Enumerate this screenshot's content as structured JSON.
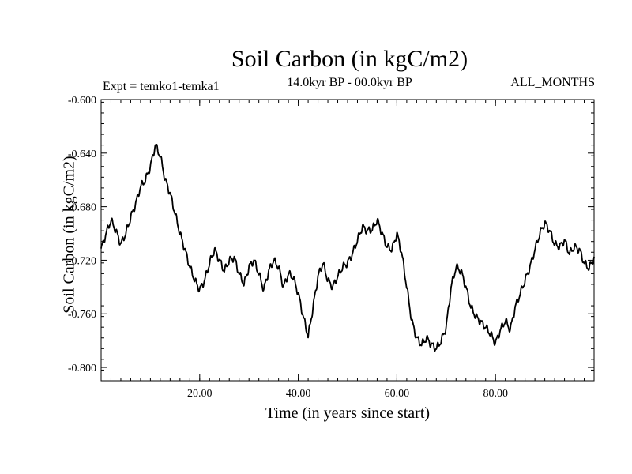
{
  "chart_data": {
    "type": "line",
    "title": "Soil Carbon (in kgC/m2)",
    "subtitle": "14.0kyr BP - 00.0kyr BP",
    "left_annotation": "Expt = temko1-temka1",
    "right_annotation": "ALL_MONTHS",
    "xlabel": "Time (in years since start)",
    "ylabel": "Soil Carbon (in kgC/m2)",
    "xlim": [
      0,
      100
    ],
    "ylim": [
      -0.81,
      -0.6
    ],
    "x_ticks": [
      20,
      40,
      60,
      80
    ],
    "x_tick_labels": [
      "20.00",
      "40.00",
      "60.00",
      "80.00"
    ],
    "y_ticks": [
      -0.6,
      -0.64,
      -0.68,
      -0.72,
      -0.76,
      -0.8
    ],
    "y_tick_labels": [
      "-0.600",
      "-0.640",
      "-0.680",
      "-0.720",
      "-0.760",
      "-0.800"
    ],
    "grid": false,
    "series": [
      {
        "name": "Soil Carbon",
        "x": [
          0,
          1,
          2,
          3,
          4,
          5,
          6,
          7,
          8,
          9,
          10,
          11,
          12,
          13,
          14,
          15,
          16,
          17,
          18,
          19,
          20,
          21,
          22,
          23,
          24,
          25,
          26,
          27,
          28,
          29,
          30,
          31,
          32,
          33,
          34,
          35,
          36,
          37,
          38,
          39,
          40,
          41,
          42,
          43,
          44,
          45,
          46,
          47,
          48,
          49,
          50,
          51,
          52,
          53,
          54,
          55,
          56,
          57,
          58,
          59,
          60,
          61,
          62,
          63,
          64,
          65,
          66,
          67,
          68,
          69,
          70,
          71,
          72,
          73,
          74,
          75,
          76,
          77,
          78,
          79,
          80,
          81,
          82,
          83,
          84,
          85,
          86,
          87,
          88,
          89,
          90,
          91,
          92,
          93,
          94,
          95,
          96,
          97,
          98,
          99,
          100
        ],
        "values": [
          -0.712,
          -0.7,
          -0.69,
          -0.698,
          -0.708,
          -0.7,
          -0.688,
          -0.678,
          -0.665,
          -0.66,
          -0.65,
          -0.634,
          -0.642,
          -0.66,
          -0.67,
          -0.685,
          -0.7,
          -0.712,
          -0.725,
          -0.735,
          -0.742,
          -0.735,
          -0.722,
          -0.712,
          -0.72,
          -0.728,
          -0.72,
          -0.718,
          -0.73,
          -0.738,
          -0.725,
          -0.72,
          -0.73,
          -0.742,
          -0.728,
          -0.72,
          -0.725,
          -0.74,
          -0.73,
          -0.733,
          -0.745,
          -0.762,
          -0.777,
          -0.755,
          -0.732,
          -0.722,
          -0.735,
          -0.74,
          -0.732,
          -0.725,
          -0.722,
          -0.715,
          -0.705,
          -0.695,
          -0.698,
          -0.697,
          -0.69,
          -0.7,
          -0.71,
          -0.712,
          -0.7,
          -0.715,
          -0.74,
          -0.765,
          -0.778,
          -0.783,
          -0.778,
          -0.783,
          -0.786,
          -0.78,
          -0.77,
          -0.74,
          -0.725,
          -0.728,
          -0.74,
          -0.755,
          -0.762,
          -0.766,
          -0.77,
          -0.775,
          -0.782,
          -0.772,
          -0.765,
          -0.772,
          -0.755,
          -0.745,
          -0.735,
          -0.725,
          -0.712,
          -0.7,
          -0.692,
          -0.698,
          -0.708,
          -0.71,
          -0.705,
          -0.715,
          -0.71,
          -0.712,
          -0.722,
          -0.726,
          -0.718
        ]
      }
    ]
  }
}
